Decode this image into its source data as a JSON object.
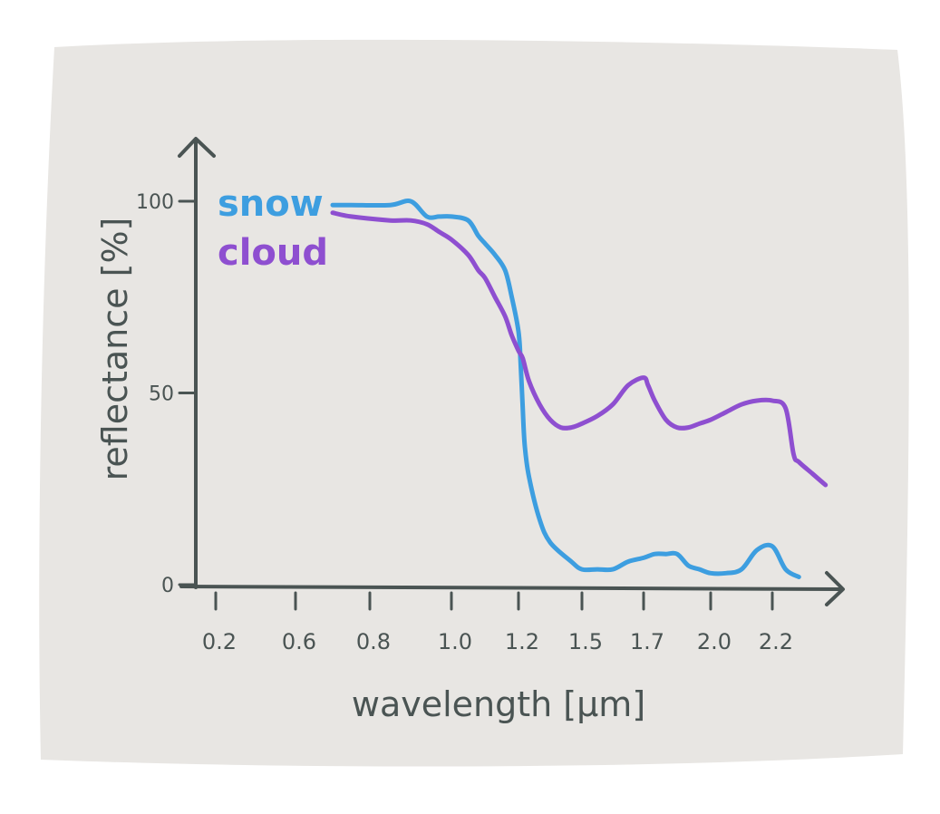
{
  "chart_data": {
    "type": "line",
    "title": "",
    "xlabel": "wavelength [μm]",
    "ylabel": "reflectance [%]",
    "x_ticks": [
      "0.2",
      "0.6",
      "0.8",
      "1.0",
      "1.2",
      "1.5",
      "1.7",
      "2.0",
      "2.2"
    ],
    "y_ticks": [
      "0",
      "50",
      "100"
    ],
    "ylim": [
      0,
      100
    ],
    "legend_placement": "top-left",
    "series": [
      {
        "name": "snow",
        "color": "#3d9ee0",
        "x": [
          0.7,
          0.75,
          0.85,
          0.9,
          0.94,
          0.97,
          1.0,
          1.05,
          1.08,
          1.1,
          1.13,
          1.16,
          1.18,
          1.2,
          1.21,
          1.22,
          1.23,
          1.25,
          1.3,
          1.35,
          1.45,
          1.5,
          1.55,
          1.6,
          1.65,
          1.7,
          1.75,
          1.8,
          1.85,
          1.9,
          1.95,
          2.0,
          2.05,
          2.1,
          2.15,
          2.2,
          2.25,
          2.3
        ],
        "y": [
          99,
          99,
          99,
          100,
          96,
          96,
          96,
          95,
          91,
          89,
          86,
          82,
          75,
          66,
          58,
          46,
          36,
          28,
          17,
          11,
          6,
          4,
          4,
          4,
          6,
          7,
          8,
          8,
          8,
          5,
          4,
          3,
          3,
          4,
          9,
          10,
          4,
          2
        ]
      },
      {
        "name": "cloud",
        "color": "#8e4fd0",
        "x": [
          0.7,
          0.75,
          0.85,
          0.9,
          0.94,
          0.97,
          1.0,
          1.05,
          1.08,
          1.1,
          1.13,
          1.16,
          1.18,
          1.2,
          1.22,
          1.25,
          1.3,
          1.35,
          1.4,
          1.45,
          1.5,
          1.55,
          1.6,
          1.65,
          1.7,
          1.72,
          1.75,
          1.8,
          1.85,
          1.9,
          1.95,
          2.0,
          2.05,
          2.1,
          2.15,
          2.2,
          2.25,
          2.28,
          2.3,
          2.35,
          2.4
        ],
        "y": [
          97,
          96,
          95,
          95,
          94,
          92,
          90,
          86,
          82,
          80,
          75,
          70,
          65,
          61,
          59,
          53,
          47,
          43,
          41,
          41,
          42,
          44,
          47,
          52,
          54,
          52,
          48,
          43,
          41,
          41,
          42,
          43,
          45,
          47,
          48,
          48,
          46,
          34,
          32,
          29,
          26
        ]
      }
    ]
  }
}
